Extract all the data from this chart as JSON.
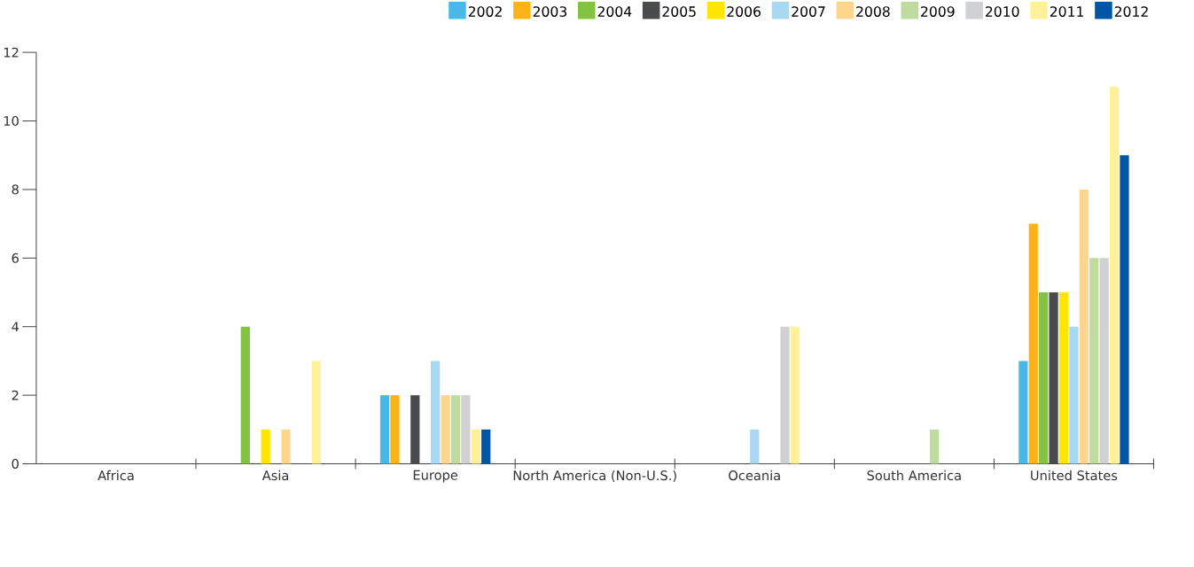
{
  "chart_data": {
    "type": "bar",
    "categories": [
      "Africa",
      "Asia",
      "Europe",
      "North America (Non-U.S.)",
      "Oceania",
      "South America",
      "United States"
    ],
    "series": [
      {
        "name": "2002",
        "color": "#48b8e8",
        "values": [
          0,
          0,
          2,
          0,
          0,
          0,
          3
        ]
      },
      {
        "name": "2003",
        "color": "#fbb316",
        "values": [
          0,
          0,
          2,
          0,
          0,
          0,
          7
        ]
      },
      {
        "name": "2004",
        "color": "#84c341",
        "values": [
          0,
          4,
          0,
          0,
          0,
          0,
          5
        ]
      },
      {
        "name": "2005",
        "color": "#4a4b4d",
        "values": [
          0,
          0,
          2,
          0,
          0,
          0,
          5
        ]
      },
      {
        "name": "2006",
        "color": "#ffe600",
        "values": [
          0,
          1,
          0,
          0,
          0,
          0,
          5
        ]
      },
      {
        "name": "2007",
        "color": "#a8d8f2",
        "values": [
          0,
          0,
          3,
          0,
          1,
          0,
          4
        ]
      },
      {
        "name": "2008",
        "color": "#fdd58d",
        "values": [
          0,
          1,
          2,
          0,
          0,
          0,
          8
        ]
      },
      {
        "name": "2009",
        "color": "#bfdc9e",
        "values": [
          0,
          0,
          2,
          0,
          0,
          1,
          6
        ]
      },
      {
        "name": "2010",
        "color": "#d0d1d3",
        "values": [
          0,
          0,
          2,
          0,
          4,
          0,
          6
        ]
      },
      {
        "name": "2011",
        "color": "#fff09a",
        "values": [
          0,
          3,
          1,
          0,
          4,
          0,
          11
        ]
      },
      {
        "name": "2012",
        "color": "#0055a5",
        "values": [
          0,
          0,
          1,
          0,
          0,
          0,
          9
        ]
      }
    ],
    "ylim": [
      0,
      12
    ],
    "yticks": [
      0,
      2,
      4,
      6,
      8,
      10,
      12
    ],
    "grid": false,
    "legend": "top right"
  }
}
